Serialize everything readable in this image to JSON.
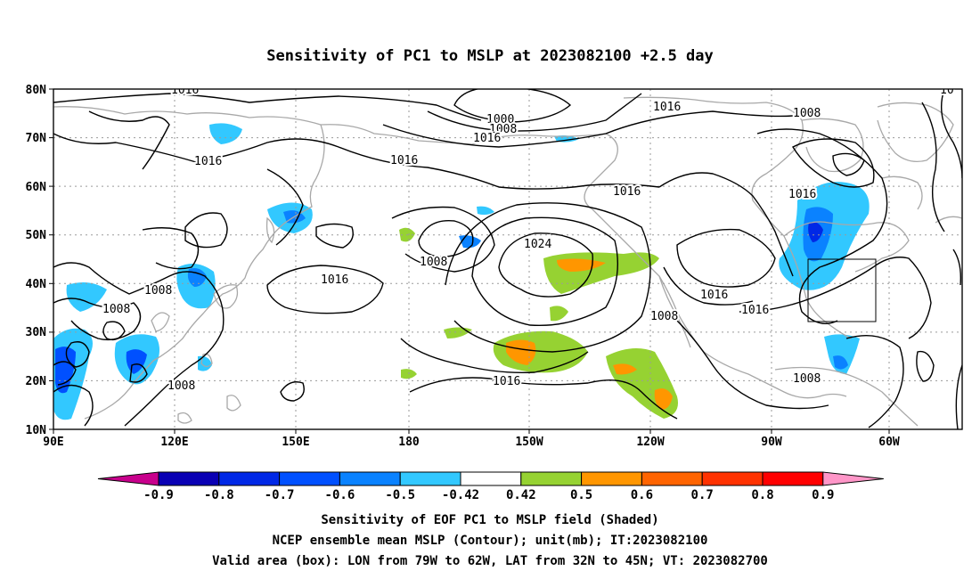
{
  "title": "Sensitivity of PC1 to MSLP at 2023082100 +2.5 day",
  "axes": {
    "lat_labels": [
      "80N",
      "70N",
      "60N",
      "50N",
      "40N",
      "30N",
      "20N",
      "10N"
    ],
    "lon_labels": [
      "90E",
      "120E",
      "150E",
      "180",
      "150W",
      "120W",
      "90W",
      "60W"
    ]
  },
  "contour_labels": [
    "1016",
    "1016",
    "1000",
    "1008",
    "1016",
    "1016",
    "1008",
    "1016",
    "1016",
    "1016",
    "1016",
    "1008",
    "1024",
    "1016",
    "1008",
    "1008",
    "1016",
    "1016",
    "1008",
    "1016",
    "1008",
    "1008",
    "10"
  ],
  "colorbar": {
    "labels": [
      "-0.9",
      "-0.8",
      "-0.7",
      "-0.6",
      "-0.5",
      "-0.42",
      "0.42",
      "0.5",
      "0.6",
      "0.7",
      "0.8",
      "0.9"
    ],
    "colors": [
      "#0a00b4",
      "#0028e6",
      "#0050ff",
      "#0a82ff",
      "#32c8ff",
      "#ffffff",
      "#96d232",
      "#ff9600",
      "#ff6400",
      "#ff3200",
      "#ff0000"
    ],
    "below_color": "#c8008c",
    "above_color": "#ff96c8"
  },
  "footer": {
    "line1": "Sensitivity of EOF PC1 to MSLP field (Shaded)",
    "line2": "NCEP ensemble mean MSLP (Contour); unit(mb); IT:2023082100",
    "line3": "Valid area (box): LON from 79W to 62W, LAT from 32N to 45N; VT: 2023082700"
  }
}
